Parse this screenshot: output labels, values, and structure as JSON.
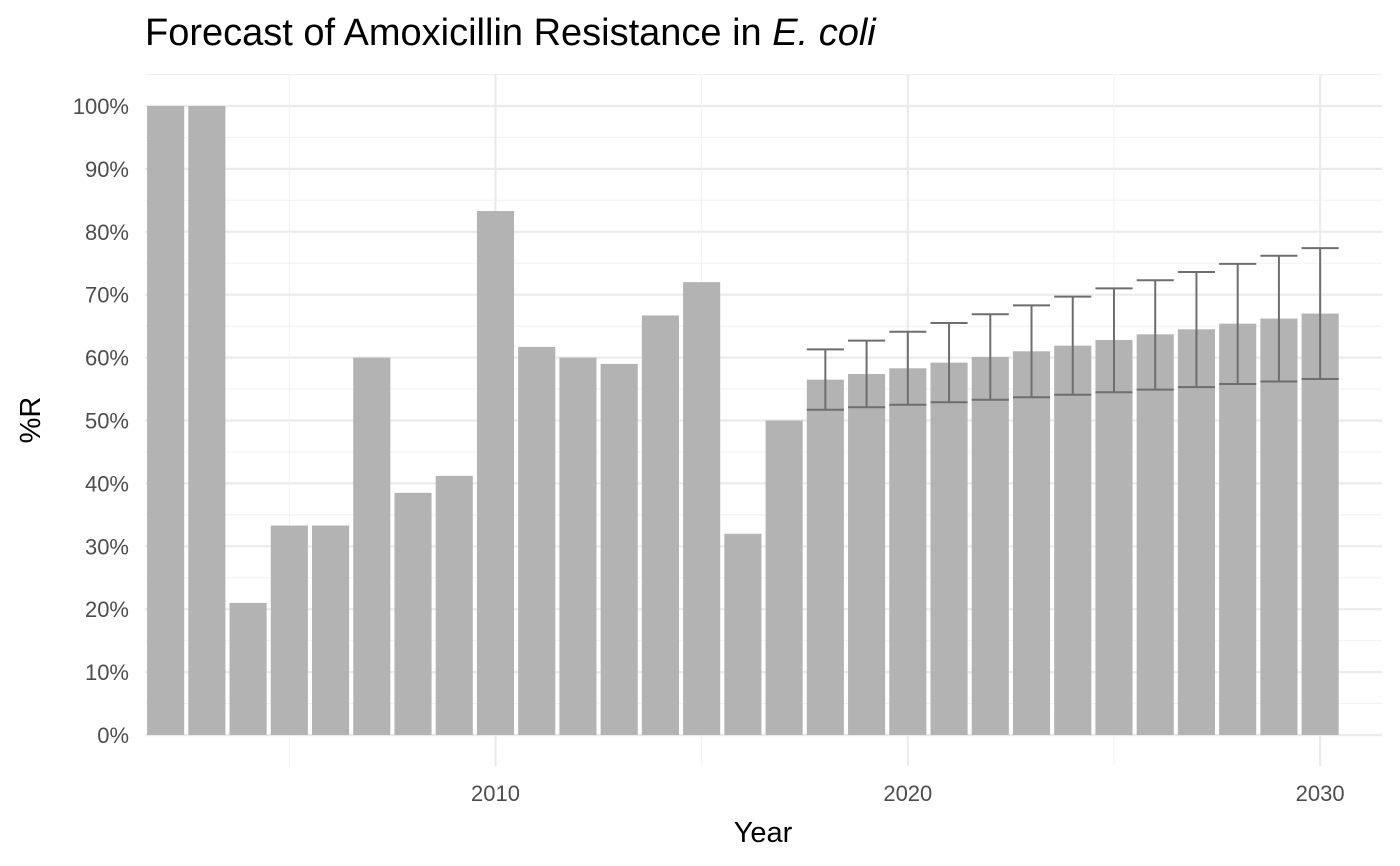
{
  "chart_data": {
    "type": "bar",
    "title_main": "Forecast of Amoxicillin Resistance in ",
    "title_italic": "E. coli",
    "xlabel": "Year",
    "ylabel": "%R",
    "x_ticks": [
      2010,
      2020,
      2030
    ],
    "y_ticks": [
      "0%",
      "10%",
      "20%",
      "30%",
      "40%",
      "50%",
      "60%",
      "70%",
      "80%",
      "90%",
      "100%"
    ],
    "ylim": [
      0,
      1
    ],
    "xlim": [
      2001.5,
      2031.5
    ],
    "bar_color": "#b3b3b3",
    "errorbar_color": "#6e6e6e",
    "grid": true,
    "observed": [
      {
        "x": 2002,
        "y": 1.0
      },
      {
        "x": 2003,
        "y": 1.0
      },
      {
        "x": 2004,
        "y": 0.21
      },
      {
        "x": 2005,
        "y": 0.333
      },
      {
        "x": 2006,
        "y": 0.333
      },
      {
        "x": 2007,
        "y": 0.6
      },
      {
        "x": 2008,
        "y": 0.385
      },
      {
        "x": 2009,
        "y": 0.412
      },
      {
        "x": 2010,
        "y": 0.833
      },
      {
        "x": 2011,
        "y": 0.617
      },
      {
        "x": 2012,
        "y": 0.6
      },
      {
        "x": 2013,
        "y": 0.59
      },
      {
        "x": 2014,
        "y": 0.667
      },
      {
        "x": 2015,
        "y": 0.72
      },
      {
        "x": 2016,
        "y": 0.32
      },
      {
        "x": 2017,
        "y": 0.5
      }
    ],
    "forecast": [
      {
        "x": 2018,
        "y": 0.565,
        "lower": 0.517,
        "upper": 0.613
      },
      {
        "x": 2019,
        "y": 0.574,
        "lower": 0.521,
        "upper": 0.627
      },
      {
        "x": 2020,
        "y": 0.583,
        "lower": 0.525,
        "upper": 0.641
      },
      {
        "x": 2021,
        "y": 0.592,
        "lower": 0.529,
        "upper": 0.655
      },
      {
        "x": 2022,
        "y": 0.601,
        "lower": 0.533,
        "upper": 0.669
      },
      {
        "x": 2023,
        "y": 0.61,
        "lower": 0.537,
        "upper": 0.683
      },
      {
        "x": 2024,
        "y": 0.619,
        "lower": 0.541,
        "upper": 0.697
      },
      {
        "x": 2025,
        "y": 0.628,
        "lower": 0.545,
        "upper": 0.71
      },
      {
        "x": 2026,
        "y": 0.637,
        "lower": 0.549,
        "upper": 0.723
      },
      {
        "x": 2027,
        "y": 0.645,
        "lower": 0.553,
        "upper": 0.736
      },
      {
        "x": 2028,
        "y": 0.654,
        "lower": 0.558,
        "upper": 0.749
      },
      {
        "x": 2029,
        "y": 0.662,
        "lower": 0.562,
        "upper": 0.762
      },
      {
        "x": 2030,
        "y": 0.67,
        "lower": 0.566,
        "upper": 0.774
      }
    ]
  }
}
